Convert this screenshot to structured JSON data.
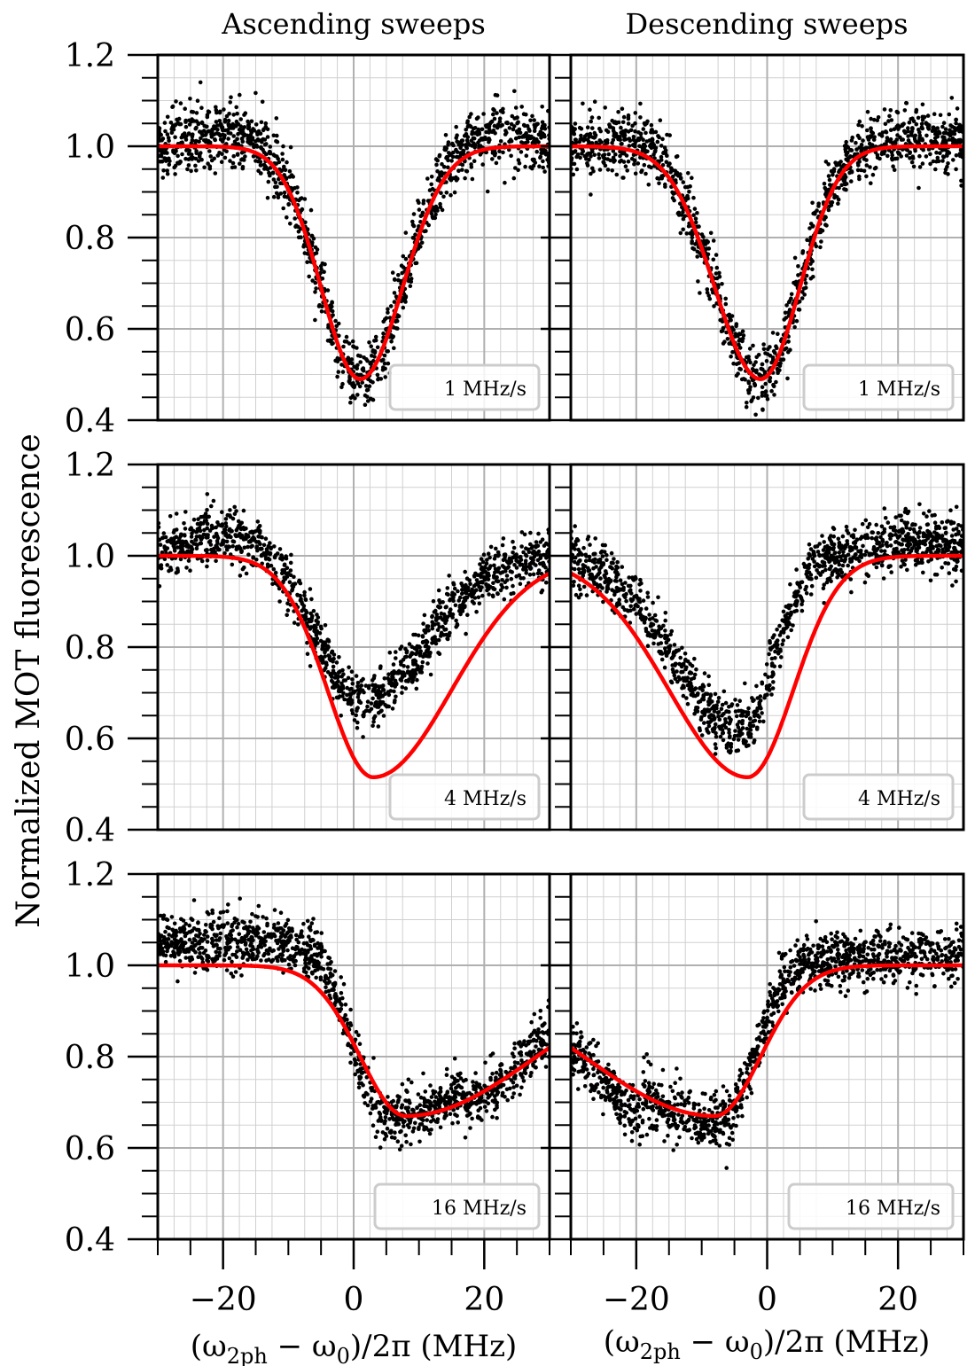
{
  "figure": {
    "col_titles": [
      "Ascending sweeps",
      "Descending sweeps"
    ],
    "ylabel": "Normalized MOT fluorescence",
    "xlabel_html": "(ω<tspan baseline-shift='sub' font-size='24'>2ph</tspan> − ω<tspan baseline-shift='sub' font-size='24'>0</tspan>)/2π (MHz)",
    "xlabel_parts": {
      "open": "(ω",
      "sub1": "2ph",
      "mid": " − ω",
      "sub2": "0",
      "close": ")/2π (MHz)"
    },
    "colors": {
      "data": "#000000",
      "fit": "#ff0000"
    }
  },
  "chart_data": [
    {
      "type": "scatter",
      "panel": "ascending-1",
      "legend": "1 MHz/s",
      "xlim": [
        -30,
        30
      ],
      "ylim": [
        0.4,
        1.2
      ],
      "yticks": [
        "0.4",
        "0.6",
        "0.8",
        "1.0",
        "1.2"
      ],
      "xticks": [],
      "fit": {
        "baseline": 1.0,
        "depth": 0.51,
        "center": 1.0,
        "sigma_left": 6.0,
        "sigma_right": 6.5
      },
      "data_model": {
        "center": 1.0,
        "depth": 0.51,
        "sigma_left": 6.0,
        "sigma_right": 6.5,
        "baseline": 1.0,
        "noise": 0.035,
        "left_bump": 0.03,
        "right_bump": 0.03
      }
    },
    {
      "type": "scatter",
      "panel": "descending-1",
      "legend": "1 MHz/s",
      "xlim": [
        -30,
        30
      ],
      "ylim": [
        0.4,
        1.2
      ],
      "yticks": [],
      "xticks": [],
      "fit": {
        "baseline": 1.0,
        "depth": 0.51,
        "center": -1.0,
        "sigma_left": 7.0,
        "sigma_right": 6.0
      },
      "data_model": {
        "center": -1.0,
        "depth": 0.51,
        "sigma_left": 7.0,
        "sigma_right": 6.0,
        "baseline": 1.0,
        "noise": 0.035,
        "left_bump": 0.02,
        "right_bump": 0.02
      }
    },
    {
      "type": "scatter",
      "panel": "ascending-4",
      "legend": "4 MHz/s",
      "xlim": [
        -30,
        30
      ],
      "ylim": [
        0.4,
        1.2
      ],
      "yticks": [
        "0.4",
        "0.6",
        "0.8",
        "1.0",
        "1.2"
      ],
      "xticks": [],
      "fit": {
        "baseline": 1.0,
        "depth": 0.485,
        "center": 3.0,
        "sigma_left": 7.0,
        "sigma_right": 12.0
      },
      "data_model": {
        "center": 1.0,
        "depth": 0.32,
        "sigma_left": 6.0,
        "sigma_right": 10.0,
        "baseline": 1.0,
        "noise": 0.03,
        "left_bump": 0.05,
        "right_bump": 0.0
      }
    },
    {
      "type": "scatter",
      "panel": "descending-4",
      "legend": "4 MHz/s",
      "xlim": [
        -30,
        30
      ],
      "ylim": [
        0.4,
        1.2
      ],
      "yticks": [],
      "xticks": [],
      "fit": {
        "baseline": 1.0,
        "depth": 0.485,
        "center": -3.0,
        "sigma_left": 12.0,
        "sigma_right": 7.0
      },
      "data_model": {
        "center": -4.0,
        "depth": 0.38,
        "sigma_left": 10.0,
        "sigma_right": 5.0,
        "baseline": 1.0,
        "noise": 0.03,
        "left_bump": 0.0,
        "right_bump": 0.03
      }
    },
    {
      "type": "scatter",
      "panel": "ascending-16",
      "legend": "16 MHz/s",
      "xlim": [
        -30,
        30
      ],
      "ylim": [
        0.4,
        1.2
      ],
      "yticks": [
        "0.4",
        "0.6",
        "0.8",
        "1.0",
        "1.2"
      ],
      "xticks": [
        "−20",
        "0",
        "20"
      ],
      "fit": {
        "baseline": 1.0,
        "depth": 0.33,
        "center": 8.0,
        "sigma_left": 7.0,
        "sigma_right": 20.0
      },
      "data_model": {
        "center": 5.0,
        "depth": 0.38,
        "sigma_left": 5.0,
        "sigma_right": 17.0,
        "baseline": 1.05,
        "noise": 0.03,
        "left_bump": 0.0,
        "right_bump": -0.05
      }
    },
    {
      "type": "scatter",
      "panel": "descending-16",
      "legend": "16 MHz/s",
      "xlim": [
        -30,
        30
      ],
      "ylim": [
        0.4,
        1.2
      ],
      "yticks": [],
      "xticks": [
        "−20",
        "0",
        "20"
      ],
      "fit": {
        "baseline": 1.0,
        "depth": 0.33,
        "center": -8.0,
        "sigma_left": 20.0,
        "sigma_right": 7.0
      },
      "data_model": {
        "center": -7.0,
        "depth": 0.36,
        "sigma_left": 17.0,
        "sigma_right": 5.0,
        "baseline": 1.02,
        "noise": 0.03,
        "left_bump": -0.05,
        "right_bump": 0.0
      }
    }
  ]
}
